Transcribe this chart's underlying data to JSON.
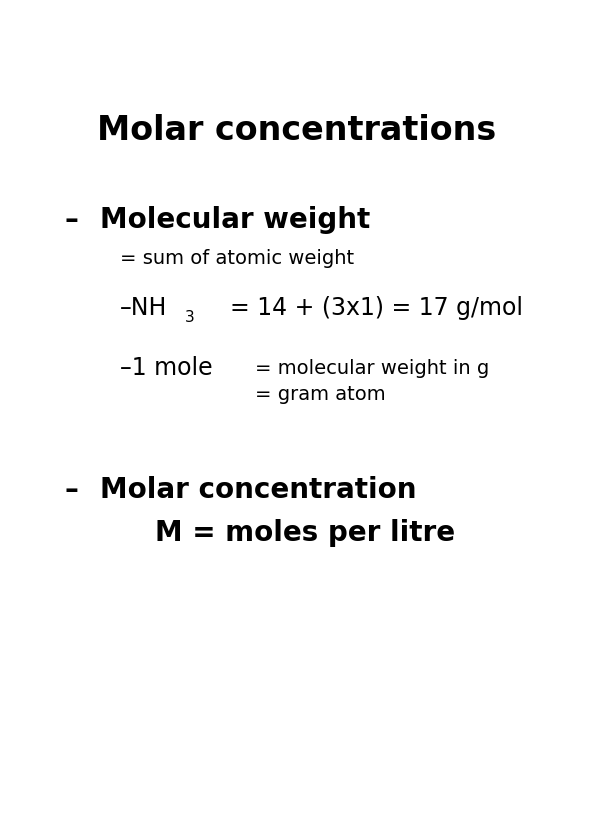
{
  "title": "Molar concentrations",
  "title_fontsize": 24,
  "title_fontweight": "bold",
  "bullet1_dash": "–",
  "bullet1_main": "Molecular weight",
  "bullet1_fontsize": 20,
  "bullet1_fontweight": "bold",
  "sub1_text": "= sum of atomic weight",
  "sub1_fontsize": 14,
  "nh3_prefix": "–NH",
  "nh3_sub": "3",
  "nh3_eq": "= 14 + (3x1) = 17 g/mol",
  "nh3_fontsize": 17,
  "mole_text": "–1 mole",
  "mole_fontsize": 17,
  "mole_eq1": "= molecular weight in g",
  "mole_eq2": "= gram atom",
  "mole_eq_fontsize": 14,
  "bullet2_dash": "–",
  "bullet2_main": "Molar concentration",
  "bullet2_fontsize": 20,
  "bullet2_fontweight": "bold",
  "sub2_text": "M = moles per litre",
  "sub2_fontsize": 20,
  "sub2_fontweight": "bold",
  "bg_color": "#ffffff",
  "text_color": "#000000",
  "fig_width": 5.95,
  "fig_height": 8.31,
  "dpi": 100
}
